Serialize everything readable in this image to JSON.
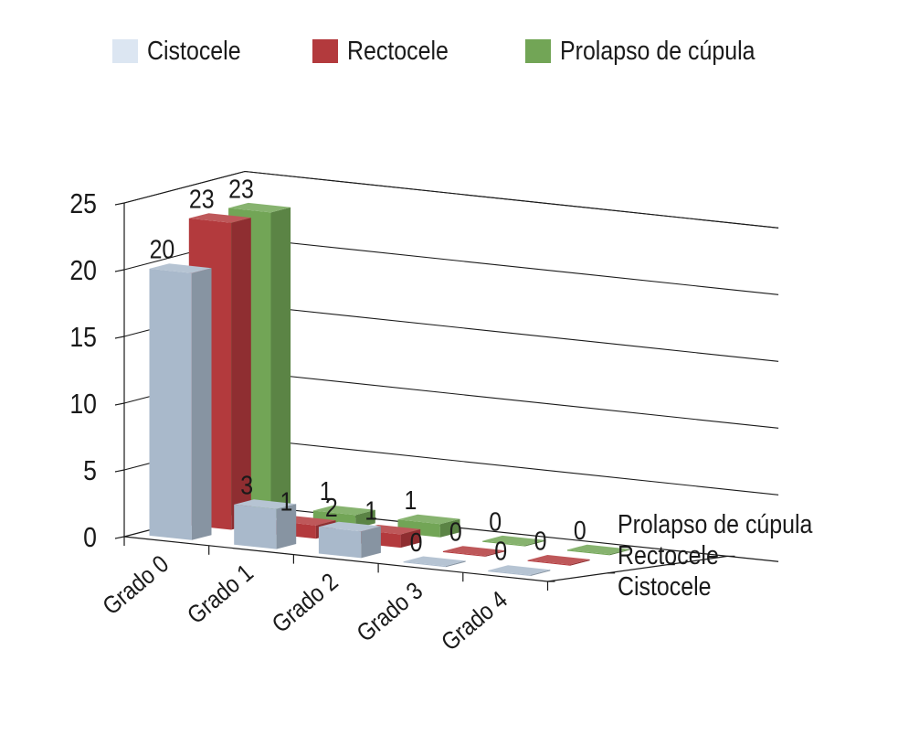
{
  "chart_data": {
    "type": "bar",
    "style": "3d-clustered-depth",
    "categories": [
      "Grado 0",
      "Grado 1",
      "Grado 2",
      "Grado 3",
      "Grado 4"
    ],
    "series": [
      {
        "name": "Cistocele",
        "values": [
          20,
          3,
          2,
          0,
          0
        ],
        "color": "#a9b9cb"
      },
      {
        "name": "Rectocele",
        "values": [
          23,
          1,
          1,
          0,
          0
        ],
        "color": "#b33a3d"
      },
      {
        "name": "Prolapso de cúpula",
        "values": [
          23,
          1,
          1,
          0,
          0
        ],
        "color": "#72a556"
      }
    ],
    "legend_swatches": [
      "#dce6f2",
      "#b33a3d",
      "#72a556"
    ],
    "depth_labels": [
      "Prolapso de cúpula",
      "Rectocele",
      "Cistocele"
    ],
    "y_ticks": [
      "0",
      "5",
      "10",
      "15",
      "20",
      "25"
    ],
    "ylim": [
      0,
      25
    ],
    "grid": true,
    "legend_position": "top"
  }
}
